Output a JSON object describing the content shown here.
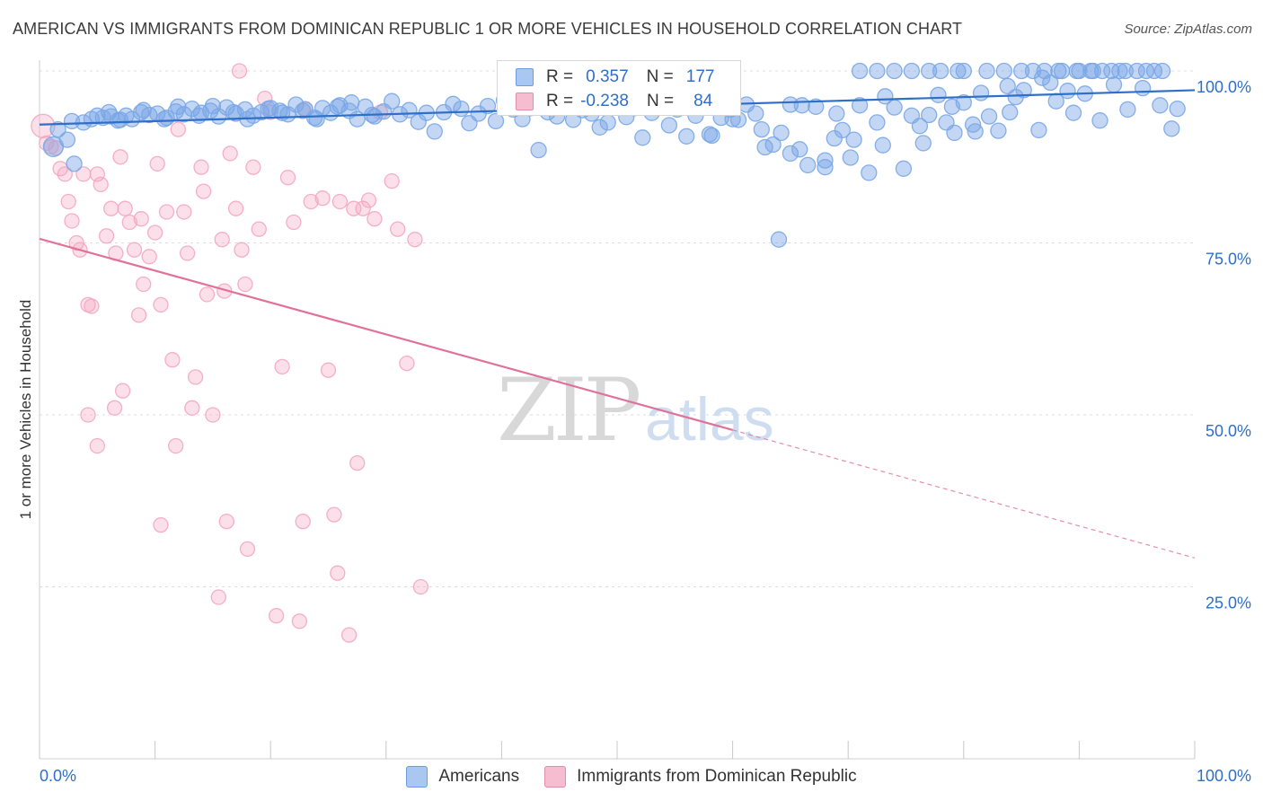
{
  "chart_data": {
    "type": "scatter",
    "title": "AMERICAN VS IMMIGRANTS FROM DOMINICAN REPUBLIC 1 OR MORE VEHICLES IN HOUSEHOLD CORRELATION CHART",
    "source": "Source: ZipAtlas.com",
    "xlabel": "",
    "ylabel": "1 or more Vehicles in Household",
    "xlim": [
      0,
      100
    ],
    "ylim": [
      0,
      100
    ],
    "x_tick_labels": [
      "0.0%",
      "100.0%"
    ],
    "y_tick_labels": [
      "100.0%",
      "75.0%",
      "50.0%",
      "25.0%"
    ],
    "y_tick_values": [
      100,
      75,
      50,
      25
    ],
    "grid": true,
    "watermark": "ZIPatlas",
    "legend_position": "top-center",
    "series": [
      {
        "name": "Americans",
        "color": "#7aa7e6",
        "line_color": "#2f6fc8",
        "R": "0.357",
        "N": "177",
        "trend": {
          "x": [
            0,
            100
          ],
          "y": [
            92.2,
            97.2
          ]
        },
        "points": [
          [
            1.2,
            89.0
          ],
          [
            1.6,
            91.5
          ],
          [
            2.4,
            90.0
          ],
          [
            3.0,
            86.5
          ],
          [
            4.5,
            93.0
          ],
          [
            5.5,
            93.2
          ],
          [
            6.2,
            93.4
          ],
          [
            6.8,
            92.8
          ],
          [
            7.5,
            93.5
          ],
          [
            8.0,
            93.0
          ],
          [
            8.8,
            94.0
          ],
          [
            9.5,
            93.6
          ],
          [
            10.2,
            93.8
          ],
          [
            11.0,
            93.2
          ],
          [
            11.8,
            94.1
          ],
          [
            12.5,
            93.7
          ],
          [
            13.2,
            94.5
          ],
          [
            14.0,
            93.9
          ],
          [
            14.8,
            94.2
          ],
          [
            15.5,
            93.4
          ],
          [
            16.2,
            94.7
          ],
          [
            17.0,
            93.8
          ],
          [
            17.8,
            94.4
          ],
          [
            18.5,
            93.5
          ],
          [
            19.2,
            94.0
          ],
          [
            20.0,
            94.6
          ],
          [
            20.8,
            94.2
          ],
          [
            21.5,
            93.7
          ],
          [
            22.2,
            95.1
          ],
          [
            23.0,
            94.4
          ],
          [
            23.8,
            93.2
          ],
          [
            24.5,
            94.6
          ],
          [
            25.2,
            93.9
          ],
          [
            26.0,
            95.0
          ],
          [
            26.8,
            94.2
          ],
          [
            27.5,
            93.0
          ],
          [
            28.2,
            94.8
          ],
          [
            29.0,
            93.4
          ],
          [
            29.8,
            94.1
          ],
          [
            30.5,
            95.6
          ],
          [
            31.2,
            93.7
          ],
          [
            32.0,
            94.3
          ],
          [
            32.8,
            92.6
          ],
          [
            33.5,
            93.9
          ],
          [
            34.2,
            91.2
          ],
          [
            35.0,
            94.0
          ],
          [
            35.8,
            95.2
          ],
          [
            36.5,
            94.5
          ],
          [
            37.2,
            92.4
          ],
          [
            38.0,
            93.8
          ],
          [
            38.8,
            94.9
          ],
          [
            39.5,
            92.7
          ],
          [
            40.2,
            95.7
          ],
          [
            41.0,
            94.4
          ],
          [
            41.8,
            93.0
          ],
          [
            42.5,
            94.6
          ],
          [
            43.2,
            88.5
          ],
          [
            44.0,
            94.0
          ],
          [
            44.8,
            93.4
          ],
          [
            45.5,
            94.8
          ],
          [
            46.2,
            92.9
          ],
          [
            47.0,
            94.3
          ],
          [
            47.8,
            93.8
          ],
          [
            48.5,
            91.8
          ],
          [
            49.2,
            92.5
          ],
          [
            50.0,
            94.9
          ],
          [
            50.8,
            93.3
          ],
          [
            51.5,
            94.6
          ],
          [
            52.2,
            90.3
          ],
          [
            53.0,
            93.9
          ],
          [
            53.8,
            95.6
          ],
          [
            54.5,
            92.1
          ],
          [
            55.2,
            94.4
          ],
          [
            56.0,
            90.5
          ],
          [
            56.8,
            93.5
          ],
          [
            57.5,
            94.7
          ],
          [
            58.2,
            90.6
          ],
          [
            59.0,
            93.2
          ],
          [
            59.8,
            94.4
          ],
          [
            60.5,
            92.9
          ],
          [
            61.2,
            95.1
          ],
          [
            62.0,
            93.8
          ],
          [
            62.8,
            88.9
          ],
          [
            63.5,
            89.3
          ],
          [
            64.2,
            91.0
          ],
          [
            65.0,
            95.1
          ],
          [
            65.8,
            88.6
          ],
          [
            66.5,
            86.3
          ],
          [
            67.2,
            94.8
          ],
          [
            68.0,
            86.0
          ],
          [
            68.8,
            90.2
          ],
          [
            69.5,
            91.4
          ],
          [
            70.2,
            87.4
          ],
          [
            71.0,
            95.0
          ],
          [
            71.8,
            85.2
          ],
          [
            72.5,
            92.5
          ],
          [
            73.2,
            96.3
          ],
          [
            74.0,
            94.7
          ],
          [
            74.8,
            85.8
          ],
          [
            75.5,
            93.5
          ],
          [
            76.2,
            92.0
          ],
          [
            77.0,
            93.6
          ],
          [
            77.8,
            96.5
          ],
          [
            78.5,
            92.5
          ],
          [
            79.2,
            91.0
          ],
          [
            80.0,
            95.4
          ],
          [
            80.8,
            92.2
          ],
          [
            81.5,
            96.8
          ],
          [
            82.2,
            93.4
          ],
          [
            83.0,
            91.3
          ],
          [
            83.8,
            97.8
          ],
          [
            84.5,
            96.2
          ],
          [
            85.2,
            97.2
          ],
          [
            86.0,
            100.0
          ],
          [
            86.8,
            99.0
          ],
          [
            87.5,
            98.3
          ],
          [
            88.2,
            100.0
          ],
          [
            89.0,
            97.1
          ],
          [
            89.8,
            100.0
          ],
          [
            90.5,
            96.7
          ],
          [
            91.2,
            100.0
          ],
          [
            92.0,
            100.0
          ],
          [
            92.8,
            100.0
          ],
          [
            93.5,
            100.0
          ],
          [
            94.2,
            94.4
          ],
          [
            95.0,
            100.0
          ],
          [
            95.8,
            100.0
          ],
          [
            96.5,
            100.0
          ],
          [
            97.2,
            100.0
          ],
          [
            98.0,
            91.6
          ],
          [
            71.0,
            100.0
          ],
          [
            72.5,
            100.0
          ],
          [
            74.0,
            100.0
          ],
          [
            75.5,
            100.0
          ],
          [
            77.0,
            100.0
          ],
          [
            78.0,
            100.0
          ],
          [
            79.5,
            100.0
          ],
          [
            80.0,
            100.0
          ],
          [
            82.0,
            100.0
          ],
          [
            83.5,
            100.0
          ],
          [
            85.0,
            100.0
          ],
          [
            87.0,
            100.0
          ],
          [
            88.5,
            100.0
          ],
          [
            90.0,
            100.0
          ],
          [
            91.0,
            100.0
          ],
          [
            94.0,
            100.0
          ],
          [
            98.5,
            94.5
          ],
          [
            65.0,
            88.0
          ],
          [
            64.0,
            75.5
          ],
          [
            68.0,
            87.0
          ],
          [
            58.0,
            90.8
          ],
          [
            60.0,
            93.0
          ],
          [
            62.5,
            91.5
          ],
          [
            66.0,
            95.0
          ],
          [
            69.0,
            93.8
          ],
          [
            70.5,
            90.0
          ],
          [
            73.0,
            89.2
          ],
          [
            76.5,
            89.5
          ],
          [
            79.0,
            94.8
          ],
          [
            81.0,
            91.2
          ],
          [
            84.0,
            94.0
          ],
          [
            86.5,
            91.4
          ],
          [
            88.0,
            95.6
          ],
          [
            89.5,
            93.9
          ],
          [
            91.8,
            92.8
          ],
          [
            93.0,
            98.0
          ],
          [
            95.5,
            97.5
          ],
          [
            97.0,
            95.0
          ],
          [
            2.8,
            92.7
          ],
          [
            3.8,
            92.5
          ],
          [
            5.0,
            93.5
          ],
          [
            6.0,
            94.0
          ],
          [
            7.0,
            92.9
          ],
          [
            9.0,
            94.3
          ],
          [
            10.8,
            93.0
          ],
          [
            12.0,
            94.8
          ],
          [
            13.8,
            93.5
          ],
          [
            15.0,
            94.9
          ],
          [
            16.8,
            94.0
          ],
          [
            18.0,
            93.0
          ],
          [
            19.8,
            94.5
          ],
          [
            21.0,
            93.9
          ],
          [
            22.8,
            94.2
          ],
          [
            24.0,
            93.0
          ],
          [
            25.8,
            94.8
          ],
          [
            27.0,
            95.4
          ],
          [
            28.8,
            93.6
          ]
        ]
      },
      {
        "name": "Immigrants from Dominican Republic",
        "color": "#f4a7c0",
        "line_color": "#e0729a",
        "R": "-0.238",
        "N": "84",
        "trend": {
          "x": [
            0,
            60
          ],
          "y": [
            75.6,
            47.8
          ]
        },
        "trend_dashed": {
          "x": [
            60,
            100
          ],
          "y": [
            47.8,
            29.2
          ]
        },
        "points": [
          [
            0.3,
            92.0
          ],
          [
            0.6,
            89.5
          ],
          [
            1.0,
            89.0
          ],
          [
            1.4,
            88.8
          ],
          [
            1.8,
            85.8
          ],
          [
            2.2,
            85.0
          ],
          [
            2.5,
            81.0
          ],
          [
            2.8,
            78.2
          ],
          [
            3.2,
            75.0
          ],
          [
            3.5,
            74.0
          ],
          [
            3.8,
            85.0
          ],
          [
            4.2,
            66.0
          ],
          [
            4.5,
            65.8
          ],
          [
            5.0,
            85.0
          ],
          [
            5.3,
            83.5
          ],
          [
            5.8,
            76.0
          ],
          [
            6.2,
            80.0
          ],
          [
            6.6,
            73.5
          ],
          [
            7.0,
            87.5
          ],
          [
            7.4,
            80.0
          ],
          [
            7.8,
            78.0
          ],
          [
            8.2,
            74.0
          ],
          [
            8.6,
            64.5
          ],
          [
            8.8,
            78.5
          ],
          [
            9.0,
            69.0
          ],
          [
            9.5,
            73.0
          ],
          [
            10.0,
            76.5
          ],
          [
            10.2,
            86.5
          ],
          [
            10.5,
            66.0
          ],
          [
            11.0,
            79.5
          ],
          [
            11.5,
            58.0
          ],
          [
            11.8,
            45.5
          ],
          [
            12.0,
            91.5
          ],
          [
            12.5,
            79.5
          ],
          [
            12.8,
            73.5
          ],
          [
            13.2,
            51.0
          ],
          [
            13.5,
            55.5
          ],
          [
            14.0,
            86.0
          ],
          [
            14.2,
            82.5
          ],
          [
            14.5,
            67.5
          ],
          [
            15.0,
            50.0
          ],
          [
            15.5,
            23.5
          ],
          [
            15.8,
            75.5
          ],
          [
            16.0,
            68.0
          ],
          [
            16.2,
            34.5
          ],
          [
            16.5,
            88.0
          ],
          [
            17.0,
            80.0
          ],
          [
            17.5,
            74.0
          ],
          [
            17.8,
            69.0
          ],
          [
            18.0,
            30.5
          ],
          [
            17.3,
            100.0
          ],
          [
            18.5,
            86.0
          ],
          [
            19.0,
            77.0
          ],
          [
            19.5,
            96.0
          ],
          [
            20.0,
            94.0
          ],
          [
            20.5,
            20.8
          ],
          [
            21.0,
            57.0
          ],
          [
            21.5,
            84.5
          ],
          [
            22.0,
            78.0
          ],
          [
            22.5,
            20.0
          ],
          [
            22.8,
            34.5
          ],
          [
            23.0,
            94.5
          ],
          [
            23.5,
            81.0
          ],
          [
            24.5,
            81.5
          ],
          [
            25.0,
            56.5
          ],
          [
            25.5,
            35.5
          ],
          [
            25.8,
            27.0
          ],
          [
            26.0,
            81.0
          ],
          [
            26.8,
            18.0
          ],
          [
            27.2,
            80.0
          ],
          [
            27.5,
            43.0
          ],
          [
            28.0,
            80.0
          ],
          [
            28.5,
            81.2
          ],
          [
            29.0,
            78.5
          ],
          [
            29.5,
            94.0
          ],
          [
            30.5,
            84.0
          ],
          [
            31.0,
            77.0
          ],
          [
            31.8,
            57.5
          ],
          [
            32.5,
            75.5
          ],
          [
            33.0,
            25.0
          ],
          [
            4.2,
            50.0
          ],
          [
            5.0,
            45.5
          ],
          [
            6.5,
            51.0
          ],
          [
            7.2,
            53.5
          ],
          [
            10.5,
            34.0
          ],
          [
            54.5,
            100.0
          ]
        ]
      }
    ]
  }
}
